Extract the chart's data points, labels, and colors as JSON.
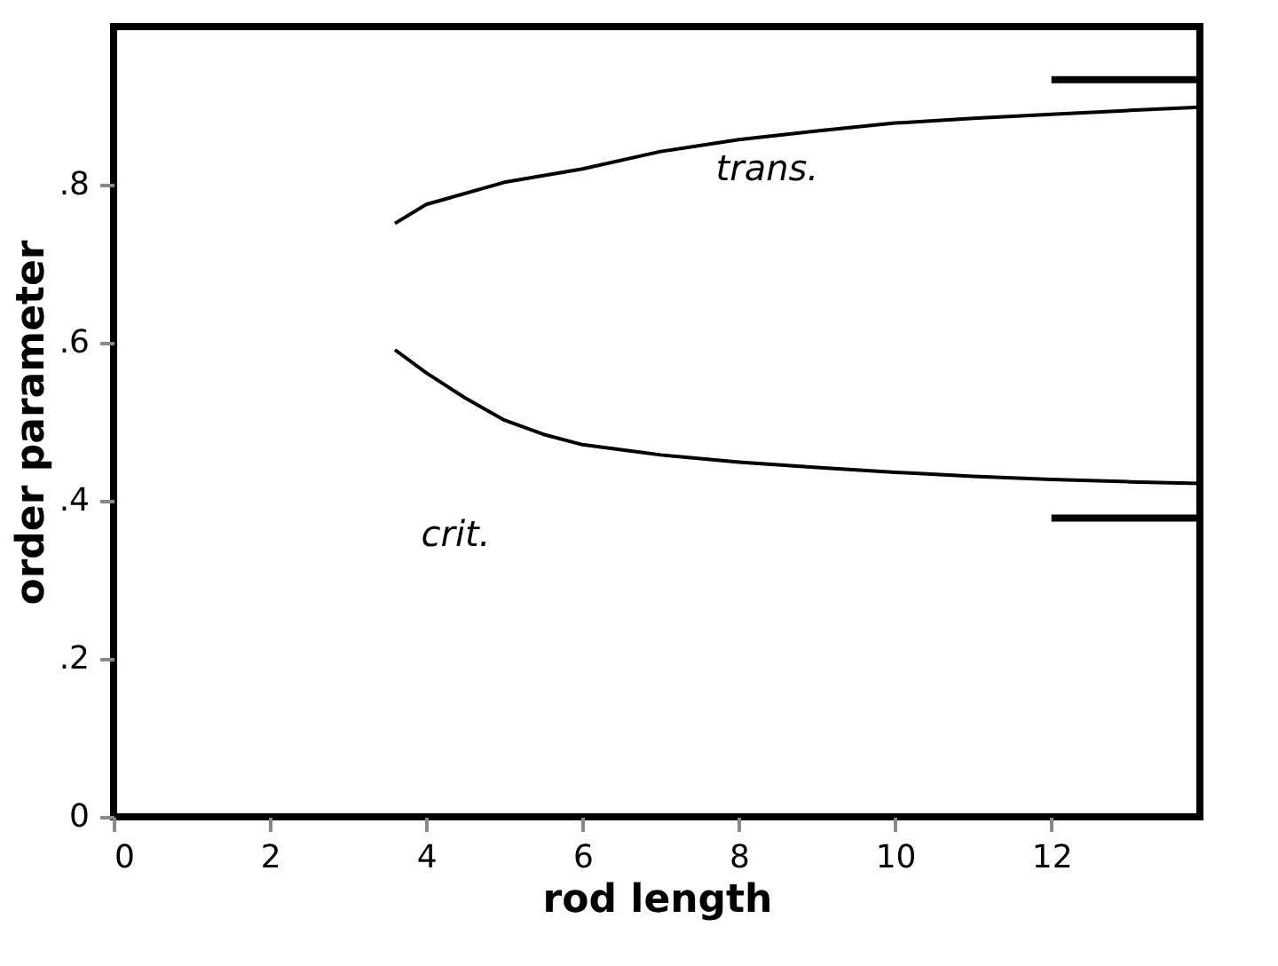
{
  "chart_data": {
    "type": "line",
    "xlabel": "rod  length",
    "ylabel": "order  parameter",
    "xlim": [
      0,
      13.9
    ],
    "ylim": [
      0,
      1
    ],
    "xticks": [
      0,
      2,
      4,
      6,
      8,
      10,
      12
    ],
    "yticks": [
      {
        "value": 0,
        "label": "0"
      },
      {
        "value": 0.2,
        "label": ".2"
      },
      {
        "value": 0.4,
        "label": ".4"
      },
      {
        "value": 0.6,
        "label": ".6"
      },
      {
        "value": 0.8,
        "label": ".8"
      }
    ],
    "grid": false,
    "marker": "none",
    "line_style": "solid",
    "series": [
      {
        "color": "#000000",
        "x": [
          3.6,
          4,
          5,
          6,
          7,
          8,
          9,
          10,
          11,
          12,
          13,
          13.9
        ],
        "values": [
          0.751,
          0.775,
          0.803,
          0.82,
          0.842,
          0.857,
          0.868,
          0.878,
          0.884,
          0.889,
          0.894,
          0.898
        ]
      },
      {
        "color": "#000000",
        "x": [
          3.6,
          4,
          4.5,
          5,
          5.5,
          6,
          7,
          8,
          9,
          10,
          11,
          12,
          13,
          13.9
        ],
        "values": [
          0.591,
          0.562,
          0.53,
          0.502,
          0.484,
          0.471,
          0.458,
          0.449,
          0.442,
          0.436,
          0.431,
          0.427,
          0.424,
          0.422
        ]
      },
      {
        "color": "#000000",
        "x": [
          12,
          13.9
        ],
        "values": [
          0.933,
          0.933
        ]
      },
      {
        "color": "#000000",
        "x": [
          12,
          13.9
        ],
        "values": [
          0.378,
          0.378
        ]
      }
    ],
    "annotations": [
      {
        "text": "trans.",
        "x": 7,
        "y": 0.842
      },
      {
        "text": "crit.",
        "x": 5.4,
        "y": 0.48
      }
    ]
  }
}
